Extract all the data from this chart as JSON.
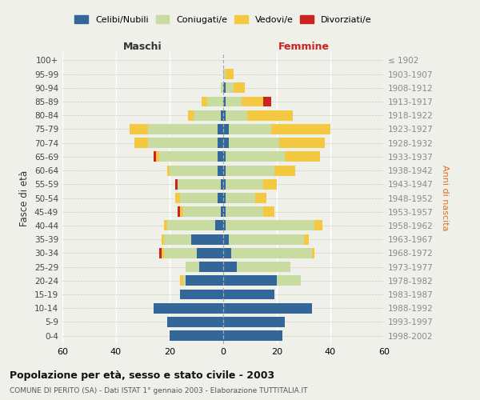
{
  "age_groups": [
    "0-4",
    "5-9",
    "10-14",
    "15-19",
    "20-24",
    "25-29",
    "30-34",
    "35-39",
    "40-44",
    "45-49",
    "50-54",
    "55-59",
    "60-64",
    "65-69",
    "70-74",
    "75-79",
    "80-84",
    "85-89",
    "90-94",
    "95-99",
    "100+"
  ],
  "birth_years": [
    "1998-2002",
    "1993-1997",
    "1988-1992",
    "1983-1987",
    "1978-1982",
    "1973-1977",
    "1968-1972",
    "1963-1967",
    "1958-1962",
    "1953-1957",
    "1948-1952",
    "1943-1947",
    "1938-1942",
    "1933-1937",
    "1928-1932",
    "1923-1927",
    "1918-1922",
    "1913-1917",
    "1908-1912",
    "1903-1907",
    "≤ 1902"
  ],
  "male": {
    "celibi": [
      20,
      21,
      26,
      16,
      14,
      9,
      10,
      12,
      3,
      1,
      2,
      1,
      2,
      2,
      2,
      2,
      1,
      0,
      0,
      0,
      0
    ],
    "coniugati": [
      0,
      0,
      0,
      0,
      1,
      5,
      12,
      10,
      18,
      14,
      14,
      16,
      18,
      22,
      26,
      26,
      10,
      6,
      1,
      0,
      0
    ],
    "vedovi": [
      0,
      0,
      0,
      0,
      1,
      0,
      1,
      1,
      1,
      1,
      2,
      0,
      1,
      1,
      5,
      7,
      2,
      2,
      0,
      0,
      0
    ],
    "divorziati": [
      0,
      0,
      0,
      0,
      0,
      0,
      1,
      0,
      0,
      1,
      0,
      1,
      0,
      1,
      0,
      0,
      0,
      0,
      0,
      0,
      0
    ]
  },
  "female": {
    "nubili": [
      22,
      23,
      33,
      19,
      20,
      5,
      3,
      2,
      1,
      1,
      1,
      1,
      1,
      1,
      2,
      2,
      1,
      1,
      1,
      0,
      0
    ],
    "coniugate": [
      0,
      0,
      0,
      0,
      9,
      20,
      30,
      28,
      33,
      14,
      11,
      14,
      18,
      22,
      19,
      16,
      8,
      6,
      3,
      1,
      0
    ],
    "vedove": [
      0,
      0,
      0,
      0,
      0,
      0,
      1,
      2,
      3,
      4,
      4,
      5,
      8,
      13,
      17,
      22,
      17,
      8,
      4,
      3,
      0
    ],
    "divorziate": [
      0,
      0,
      0,
      0,
      0,
      0,
      0,
      0,
      0,
      0,
      0,
      0,
      0,
      0,
      0,
      0,
      0,
      3,
      0,
      0,
      0
    ]
  },
  "colors": {
    "celibi": "#336699",
    "coniugati": "#c8dba0",
    "vedovi": "#f5c842",
    "divorziati": "#cc2222"
  },
  "title": "Popolazione per età, sesso e stato civile - 2003",
  "subtitle": "COMUNE DI PERITO (SA) - Dati ISTAT 1° gennaio 2003 - Elaborazione TUTTITALIA.IT",
  "xlabel_left": "Maschi",
  "xlabel_right": "Femmine",
  "ylabel_left": "Fasce di età",
  "ylabel_right": "Anni di nascita",
  "xlim": 60,
  "legend_labels": [
    "Celibi/Nubili",
    "Coniugati/e",
    "Vedovi/e",
    "Divorziati/e"
  ],
  "bg_color": "#f0f0eb",
  "bar_height": 0.75
}
